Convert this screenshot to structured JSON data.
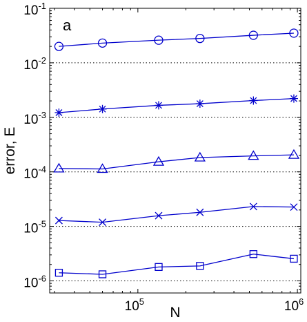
{
  "chart_data": {
    "type": "line",
    "panel_label": "a",
    "xlabel": "N",
    "ylabel": "error, E",
    "x_scale": "log",
    "y_scale": "log",
    "xlim": [
      28000,
      1050000
    ],
    "ylim": [
      6e-07,
      0.1
    ],
    "x_ticks": [
      {
        "value": 100000,
        "base": "10",
        "exp": "5"
      },
      {
        "value": 1000000,
        "base": "10",
        "exp": "6"
      }
    ],
    "y_ticks": [
      {
        "value": 1e-06,
        "base": "10",
        "exp": "-6"
      },
      {
        "value": 1e-05,
        "base": "10",
        "exp": "-5"
      },
      {
        "value": 0.0001,
        "base": "10",
        "exp": "-4"
      },
      {
        "value": 0.001,
        "base": "10",
        "exp": "-3"
      },
      {
        "value": 0.01,
        "base": "10",
        "exp": "-2"
      },
      {
        "value": 0.1,
        "base": "10",
        "exp": "-1"
      }
    ],
    "grid": "horizontal dotted at y ticks",
    "x": [
      32000,
      60000,
      135000,
      245000,
      530000,
      950000
    ],
    "series": [
      {
        "marker": "circle",
        "values": [
          0.02,
          0.023,
          0.026,
          0.028,
          0.032,
          0.035
        ]
      },
      {
        "marker": "asterisk",
        "values": [
          0.00122,
          0.00142,
          0.00166,
          0.00178,
          0.00203,
          0.00221
        ]
      },
      {
        "marker": "triangle",
        "values": [
          0.000115,
          0.000113,
          0.000153,
          0.000183,
          0.000196,
          0.000205
        ]
      },
      {
        "marker": "x",
        "values": [
          1.28e-05,
          1.19e-05,
          1.57e-05,
          1.81e-05,
          2.31e-05,
          2.26e-05
        ]
      },
      {
        "marker": "square",
        "values": [
          1.41e-06,
          1.32e-06,
          1.8e-06,
          1.88e-06,
          3.1e-06,
          2.55e-06
        ]
      }
    ],
    "color": "#0000cc"
  }
}
